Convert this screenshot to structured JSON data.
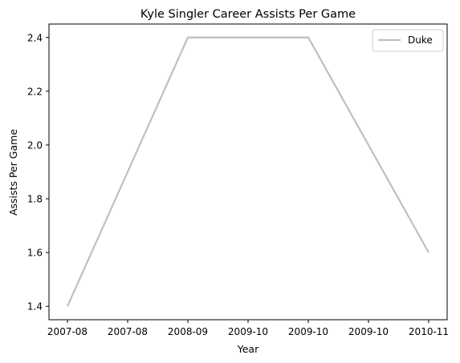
{
  "chart_data": {
    "type": "line",
    "title": "Kyle Singler Career Assists Per Game",
    "xlabel": "Year",
    "ylabel": "Assists Per Game",
    "x": [
      "2007-08",
      "2008-09",
      "2009-10",
      "2010-11"
    ],
    "x_tick_labels": [
      "2007-08",
      "2007-08",
      "2008-09",
      "2009-10",
      "2009-10",
      "2009-10",
      "2010-11"
    ],
    "y_ticks": [
      1.4,
      1.6,
      1.8,
      2.0,
      2.2,
      2.4
    ],
    "y_tick_labels": [
      "1.4",
      "1.6",
      "1.8",
      "2.0",
      "2.2",
      "2.4"
    ],
    "ylim": [
      1.35,
      2.45
    ],
    "series": [
      {
        "name": "Duke",
        "values": [
          1.4,
          2.4,
          2.4,
          1.6
        ],
        "color": "#bfbfbf"
      }
    ],
    "legend": {
      "position": "top-right"
    },
    "grid": false
  }
}
